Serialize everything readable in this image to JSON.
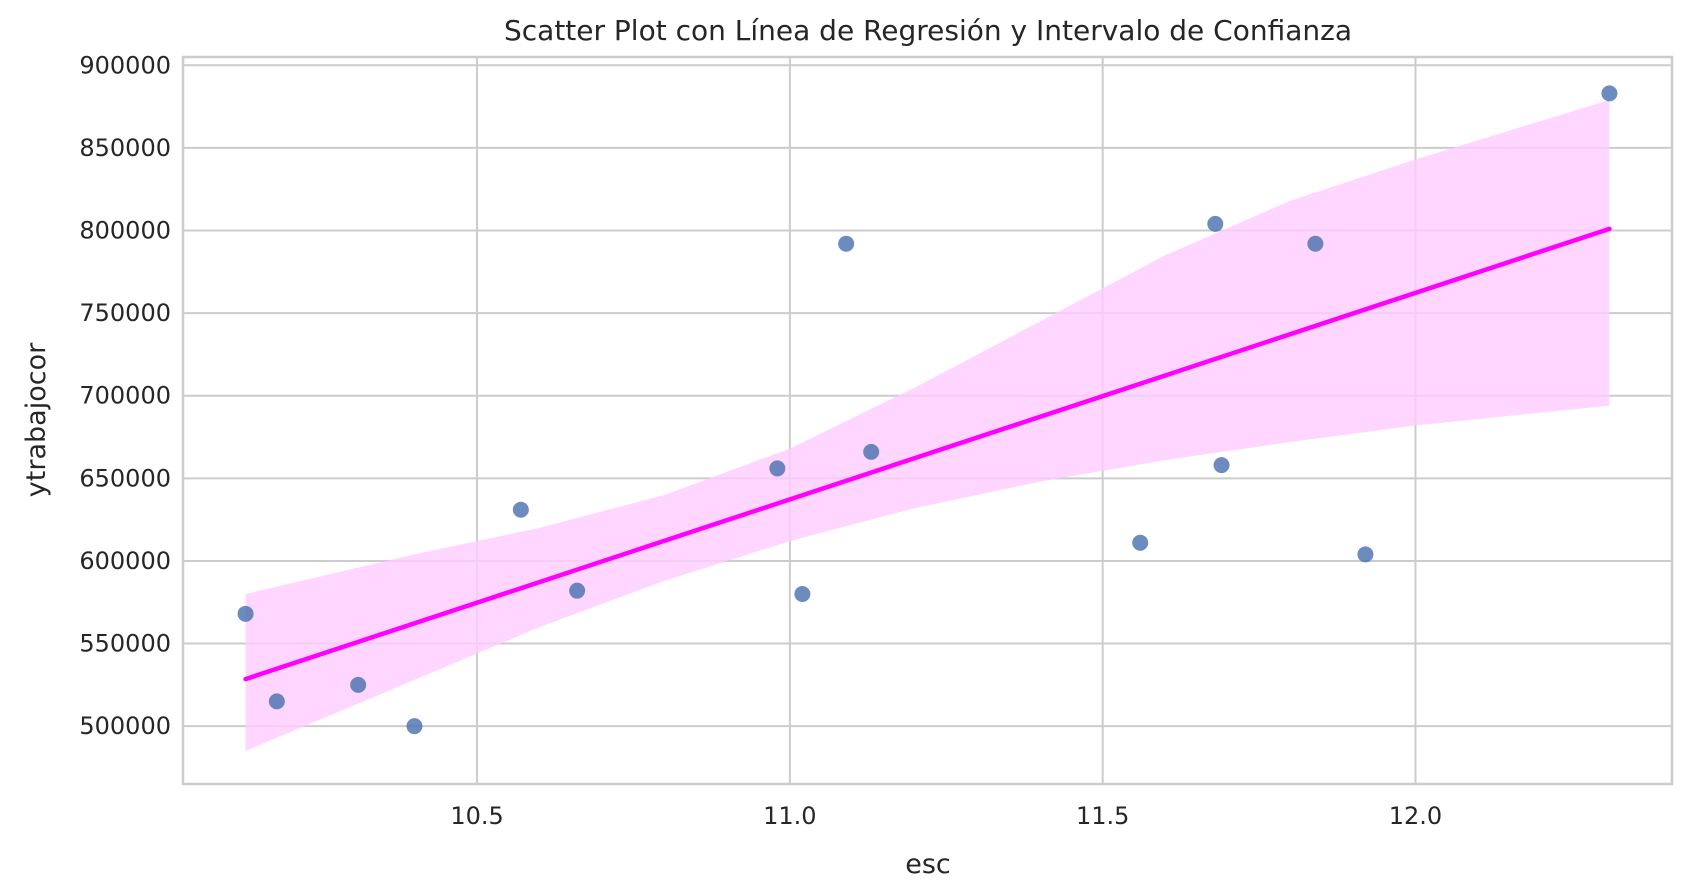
{
  "chart_data": {
    "type": "scatter",
    "title": "Scatter Plot con Línea de Regresión y Intervalo de Confianza",
    "xlabel": "esc",
    "ylabel": "ytrabajocor",
    "xlim": [
      10.03,
      12.41
    ],
    "ylim": [
      465000,
      905000
    ],
    "xticks": [
      10.5,
      11.0,
      11.5,
      12.0
    ],
    "xtick_labels": [
      "10.5",
      "11.0",
      "11.5",
      "12.0"
    ],
    "yticks": [
      500000,
      550000,
      600000,
      650000,
      700000,
      750000,
      800000,
      850000,
      900000
    ],
    "ytick_labels": [
      "500000",
      "550000",
      "600000",
      "650000",
      "700000",
      "750000",
      "800000",
      "850000",
      "900000"
    ],
    "grid": true,
    "point_color": "#4c72b0",
    "regression_color": "#ff00ff",
    "ci_color": "#ffccff",
    "series": [
      {
        "x": [
          10.13,
          10.18,
          10.31,
          10.4,
          10.57,
          10.66,
          10.98,
          11.02,
          11.09,
          11.13,
          11.56,
          11.68,
          11.69,
          11.84,
          11.92,
          12.31
        ],
        "y": [
          568000,
          515000,
          525000,
          500000,
          631000,
          582000,
          656000,
          580000,
          792000,
          666000,
          611000,
          804000,
          658000,
          792000,
          604000,
          883000
        ]
      }
    ],
    "regression": {
      "x": [
        10.13,
        12.31
      ],
      "y": [
        528500,
        801000
      ]
    },
    "confidence_band": {
      "x": [
        10.13,
        10.4,
        10.6,
        10.8,
        11.0,
        11.2,
        11.4,
        11.6,
        11.8,
        12.0,
        12.31
      ],
      "lower": [
        485000,
        528000,
        560000,
        588000,
        612000,
        632000,
        648000,
        661000,
        672000,
        682000,
        694000
      ],
      "upper": [
        580000,
        604000,
        620000,
        640000,
        668000,
        705000,
        745000,
        785000,
        818000,
        843000,
        879000
      ]
    }
  }
}
